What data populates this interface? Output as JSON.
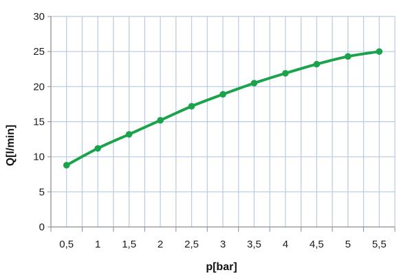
{
  "chart_data": {
    "type": "line",
    "title": "",
    "xlabel": "p[bar]",
    "ylabel": "Q[l/min]",
    "x_tick_labels": [
      "0,5",
      "1",
      "1,5",
      "2",
      "2,5",
      "3",
      "3,5",
      "4",
      "4,5",
      "5",
      "5,5"
    ],
    "x": [
      0.5,
      1,
      1.5,
      2,
      2.5,
      3,
      3.5,
      4,
      4.5,
      5,
      5.5
    ],
    "y_tick_labels": [
      "0",
      "5",
      "10",
      "15",
      "20",
      "25",
      "30"
    ],
    "y_ticks": [
      0,
      5,
      10,
      15,
      20,
      25,
      30
    ],
    "ylim": [
      0,
      30
    ],
    "xlim": [
      0.25,
      5.75
    ],
    "grid": true,
    "legend": "none",
    "series": [
      {
        "values": [
          8.8,
          11.2,
          13.2,
          15.2,
          17.2,
          18.9,
          20.5,
          21.9,
          23.2,
          24.3,
          25.0
        ]
      }
    ],
    "colors": {
      "line": "#1aa34a",
      "grid": "#b7c9e2",
      "axis": "#8c8c8c"
    }
  }
}
